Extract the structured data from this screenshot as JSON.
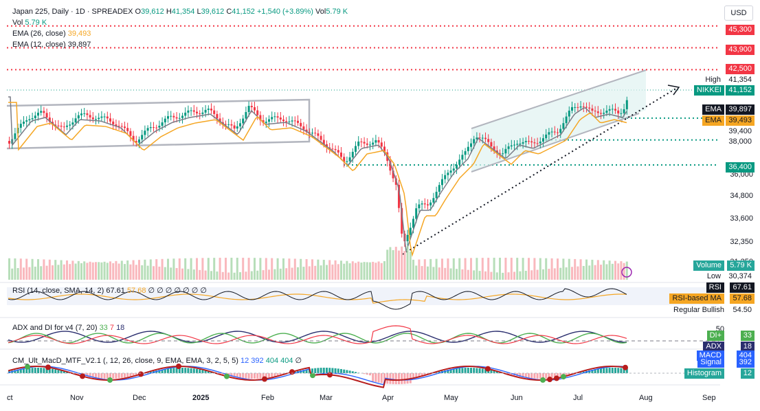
{
  "header": {
    "symbol": "Japan 225, Daily · 1D · SPREADEX",
    "open_label": "O",
    "open": "39,612",
    "high_label": "H",
    "high": "41,354",
    "low_label": "L",
    "low": "39,612",
    "close_label": "C",
    "close": "41,152",
    "change": "+1,540 (+3.89%)",
    "vol_label": "Vol",
    "vol": "5.79 K"
  },
  "legend": {
    "vol_label": "Vol",
    "vol_value": "5.79 K",
    "ema26_label": "EMA (26, close)",
    "ema26_value": "39,493",
    "ema12_label": "EMA (12, close)",
    "ema12_value": "39,897"
  },
  "currency": "USD",
  "price_axis": {
    "ticks": [
      "36,000",
      "34,800",
      "33,600",
      "32,350",
      "31,250"
    ]
  },
  "price_tags": {
    "t45300": "45,300",
    "t43900": "43,900",
    "t42500": "42,500",
    "high_label": "High",
    "high_value": "41,354",
    "nikkei_label": "NIKKEI",
    "nikkei_value": "41,152",
    "ema_label": "EMA",
    "ema_value": "39,897",
    "ema2_label": "EMA",
    "ema2_value": "39,493",
    "t39400": "39,400",
    "t38000": "38,000",
    "t36400": "36,400",
    "volume_label": "Volume",
    "volume_value": "5.79 K",
    "low_label": "Low",
    "low_value": "30,374"
  },
  "rsi": {
    "legend": "RSI (14, close, SMA, 14, 2)",
    "value": "67.61",
    "ma_value": "57.68",
    "extra": "∅ ∅ ∅ ∅ ∅ ∅ ∅",
    "tag_rsi_label": "RSI",
    "tag_rsi_value": "67.61",
    "tag_ma_label": "RSI-based MA",
    "tag_ma_value": "57.68",
    "tag_level": "54.50",
    "tag_bull": "Regular Bullish"
  },
  "adx": {
    "legend": "ADX and DI for v4 (7, 20)",
    "v1": "33",
    "v2": "7",
    "v3": "18",
    "scale": "50",
    "tag_di_label": "DI+",
    "tag_di_value": "33",
    "tag_adx_label": "ADX",
    "tag_adx_value": "18"
  },
  "macd": {
    "legend": "CM_Ult_MacD_MTF_V2.1 (, 12, 26, close, 9, EMA, EMA, 3, 2, 5, 5)",
    "v1": "12",
    "v2": "392",
    "v3": "404",
    "v4": "404",
    "v5": "∅",
    "tag_macd_label": "MACD",
    "tag_macd_value": "404",
    "tag_signal_label": "Signal",
    "tag_signal_value": "392",
    "tag_hist_label": "Histogram",
    "tag_hist_value": "12"
  },
  "time_axis": [
    "ct",
    "Nov",
    "Dec",
    "2025",
    "Feb",
    "Mar",
    "Apr",
    "May",
    "Jun",
    "Jul",
    "Aug",
    "Sep"
  ],
  "colors": {
    "up": "#089981",
    "down": "#f23645",
    "ema_fast": "#787b86",
    "ema_slow": "#f5a623",
    "red_level": "#f23645",
    "green_level": "#089981",
    "adx": "#2a2e6e",
    "di_plus": "#4caf50",
    "di_minus": "#f23645"
  }
}
